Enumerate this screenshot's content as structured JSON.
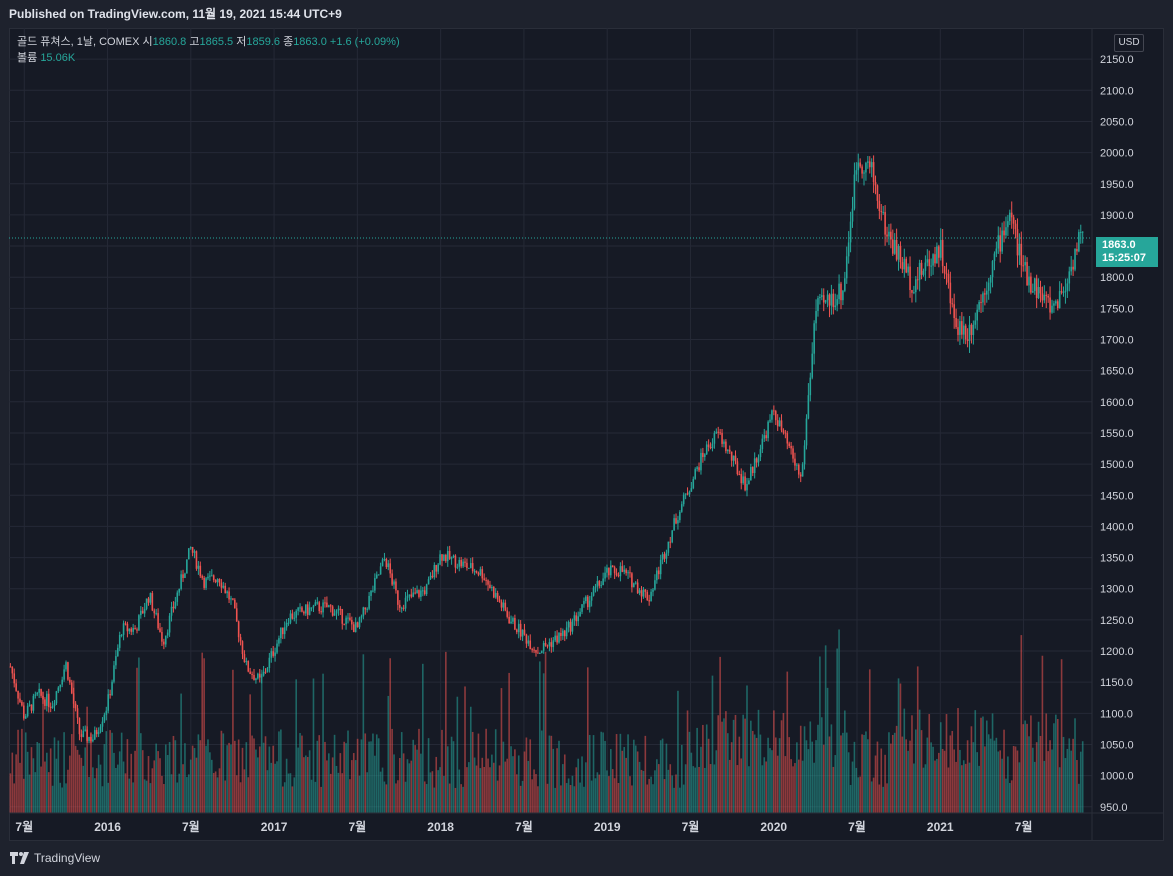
{
  "header": {
    "published": "Published on TradingView.com, 11월 19, 2021 15:44 UTC+9"
  },
  "legend": {
    "symbol": "골드 퓨쳐스, 1날, COMEX",
    "open_label": "시",
    "open": "1860.8",
    "high_label": "고",
    "high": "1865.5",
    "low_label": "저",
    "low": "1859.6",
    "close_label": "종",
    "close": "1863.0",
    "change": "+1.6 (+0.09%)",
    "volume_label": "볼륨",
    "volume": "15.06K"
  },
  "currency_badge": "USD",
  "last_price": {
    "price": "1863.0",
    "countdown": "15:25:07"
  },
  "footer": {
    "brand": "TradingView"
  },
  "colors": {
    "up": "#26a69a",
    "down": "#ef5350",
    "grid": "#252936",
    "axis_text": "#d1d4dc",
    "background": "#161a25"
  },
  "chart_data": {
    "type": "candlestick",
    "symbol": "골드 퓨쳐스",
    "interval": "1날",
    "exchange": "COMEX",
    "currency": "USD",
    "y_ticks": [
      "950.0",
      "1000.0",
      "1050.0",
      "1100.0",
      "1150.0",
      "1200.0",
      "1250.0",
      "1300.0",
      "1350.0",
      "1400.0",
      "1450.0",
      "1500.0",
      "1550.0",
      "1600.0",
      "1650.0",
      "1700.0",
      "1750.0",
      "1800.0",
      "1850.0",
      "1900.0",
      "1950.0",
      "2000.0",
      "2050.0",
      "2100.0",
      "2150.0"
    ],
    "ylim": [
      940,
      2200
    ],
    "x_ticks": [
      "7월",
      "2016",
      "7월",
      "2017",
      "7월",
      "2018",
      "7월",
      "2019",
      "7월",
      "2020",
      "7월",
      "2021",
      "7월"
    ],
    "price_path_approx": [
      {
        "date": "2015-06",
        "close": 1175
      },
      {
        "date": "2015-07",
        "close": 1095
      },
      {
        "date": "2015-08",
        "close": 1130
      },
      {
        "date": "2015-09",
        "close": 1115
      },
      {
        "date": "2015-10",
        "close": 1180
      },
      {
        "date": "2015-11",
        "close": 1065
      },
      {
        "date": "2015-12",
        "close": 1060
      },
      {
        "date": "2016-01",
        "close": 1115
      },
      {
        "date": "2016-02",
        "close": 1235
      },
      {
        "date": "2016-03",
        "close": 1235
      },
      {
        "date": "2016-04",
        "close": 1290
      },
      {
        "date": "2016-05",
        "close": 1215
      },
      {
        "date": "2016-07",
        "close": 1365
      },
      {
        "date": "2016-08",
        "close": 1310
      },
      {
        "date": "2016-09",
        "close": 1320
      },
      {
        "date": "2016-10",
        "close": 1275
      },
      {
        "date": "2016-11",
        "close": 1175
      },
      {
        "date": "2016-12",
        "close": 1150
      },
      {
        "date": "2017-02",
        "close": 1255
      },
      {
        "date": "2017-04",
        "close": 1270
      },
      {
        "date": "2017-05",
        "close": 1270
      },
      {
        "date": "2017-07",
        "close": 1235
      },
      {
        "date": "2017-09",
        "close": 1350
      },
      {
        "date": "2017-10",
        "close": 1275
      },
      {
        "date": "2017-12",
        "close": 1300
      },
      {
        "date": "2018-01",
        "close": 1355
      },
      {
        "date": "2018-04",
        "close": 1325
      },
      {
        "date": "2018-06",
        "close": 1250
      },
      {
        "date": "2018-08",
        "close": 1200
      },
      {
        "date": "2018-10",
        "close": 1230
      },
      {
        "date": "2019-01",
        "close": 1325
      },
      {
        "date": "2019-02",
        "close": 1330
      },
      {
        "date": "2019-04",
        "close": 1285
      },
      {
        "date": "2019-06",
        "close": 1415
      },
      {
        "date": "2019-08",
        "close": 1520
      },
      {
        "date": "2019-09",
        "close": 1550
      },
      {
        "date": "2019-11",
        "close": 1465
      },
      {
        "date": "2020-01",
        "close": 1585
      },
      {
        "date": "2020-03",
        "close": 1475
      },
      {
        "date": "2020-04",
        "close": 1745
      },
      {
        "date": "2020-06",
        "close": 1780
      },
      {
        "date": "2020-07",
        "close": 1990
      },
      {
        "date": "2020-08",
        "close": 1975
      },
      {
        "date": "2020-09",
        "close": 1880
      },
      {
        "date": "2020-11",
        "close": 1790
      },
      {
        "date": "2021-01",
        "close": 1850
      },
      {
        "date": "2021-02",
        "close": 1730
      },
      {
        "date": "2021-03",
        "close": 1710
      },
      {
        "date": "2021-04",
        "close": 1770
      },
      {
        "date": "2021-06",
        "close": 1905
      },
      {
        "date": "2021-07",
        "close": 1810
      },
      {
        "date": "2021-08",
        "close": 1780
      },
      {
        "date": "2021-09",
        "close": 1750
      },
      {
        "date": "2021-10",
        "close": 1785
      },
      {
        "date": "2021-11",
        "close": 1863
      }
    ],
    "last": {
      "open": 1860.8,
      "high": 1865.5,
      "low": 1859.6,
      "close": 1863.0,
      "change": 1.6,
      "change_pct": 0.09,
      "volume": "15.06K"
    },
    "volume_pane": {
      "overlay": true,
      "shape": "vertical bars colored by candle direction"
    }
  }
}
